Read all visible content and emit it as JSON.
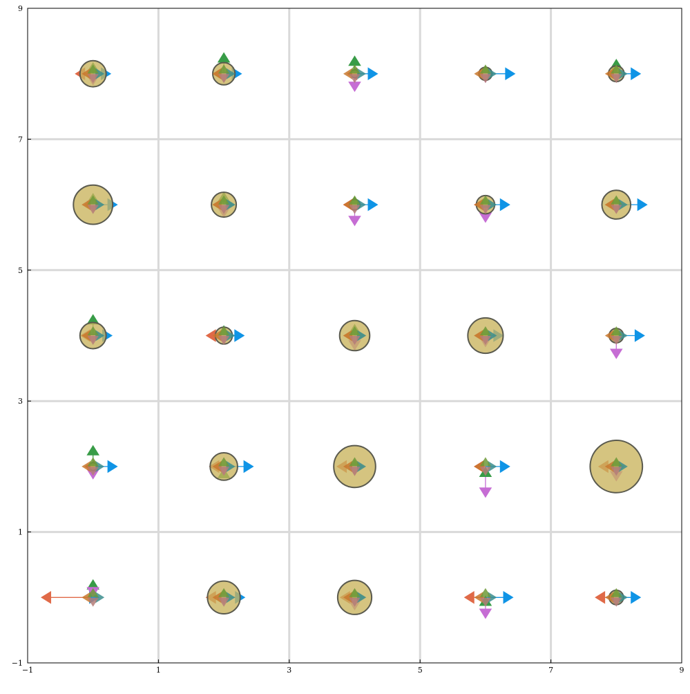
{
  "chart_data": {
    "type": "scatter",
    "title": "",
    "xlabel": "",
    "ylabel": "",
    "xlim": [
      -1,
      9
    ],
    "ylim": [
      -1,
      9
    ],
    "grid": true,
    "legend": "none",
    "xticks": [
      "−1",
      "1",
      "3",
      "5",
      "7",
      "9"
    ],
    "yticks": [
      "−1",
      "1",
      "3",
      "5",
      "7",
      "9"
    ],
    "xtick_values": [
      -1,
      1,
      3,
      5,
      7,
      9
    ],
    "ytick_values": [
      -1,
      1,
      3,
      5,
      7,
      9
    ],
    "colors": {
      "circle_fill": "#c9b45c",
      "circle_stroke": "#5a5a4e",
      "right": "#0f94e6",
      "left": "#e06a48",
      "up": "#389c47",
      "down": "#c66dd4",
      "right_muted": "#3b8d8d",
      "left_muted": "#c8782e",
      "up_muted": "#6f9a38",
      "down_muted": "#b47c78",
      "grid": "#d9d9d9",
      "axis": "#000000"
    },
    "points": [
      {
        "x": 0,
        "y": 8,
        "radius": 0.2,
        "right": 0.2,
        "left": 0.2,
        "up": 0.1,
        "down": 0.1
      },
      {
        "x": 2,
        "y": 8,
        "radius": 0.17,
        "right": 0.2,
        "left": 0.1,
        "up": 0.25,
        "down": 0.05
      },
      {
        "x": 4,
        "y": 8,
        "radius": 0.06,
        "right": 0.28,
        "left": 0.04,
        "up": 0.2,
        "down": 0.2
      },
      {
        "x": 6,
        "y": 8,
        "radius": 0.1,
        "right": 0.38,
        "left": 0.04,
        "up": 0.05,
        "down": 0.06
      },
      {
        "x": 8,
        "y": 8,
        "radius": 0.12,
        "right": 0.3,
        "left": 0.07,
        "up": 0.15,
        "down": 0.05
      },
      {
        "x": 0,
        "y": 6,
        "radius": 0.3,
        "right": 0.3,
        "left": 0.05,
        "up": 0.1,
        "down": 0.02
      },
      {
        "x": 2,
        "y": 6,
        "radius": 0.19,
        "right": 0.1,
        "left": 0.1,
        "up": 0.12,
        "down": 0.12
      },
      {
        "x": 4,
        "y": 6,
        "radius": 0.08,
        "right": 0.28,
        "left": 0.1,
        "up": 0.05,
        "down": 0.25
      },
      {
        "x": 6,
        "y": 6,
        "radius": 0.14,
        "right": 0.3,
        "left": 0.1,
        "up": 0.03,
        "down": 0.2
      },
      {
        "x": 8,
        "y": 6,
        "radius": 0.22,
        "right": 0.4,
        "left": 0.1,
        "up": 0.05,
        "down": 0.06
      },
      {
        "x": 0,
        "y": 4,
        "radius": 0.2,
        "right": 0.22,
        "left": 0.12,
        "up": 0.25,
        "down": 0.03
      },
      {
        "x": 2,
        "y": 4,
        "radius": 0.13,
        "right": 0.24,
        "left": 0.2,
        "up": 0.08,
        "down": 0.05
      },
      {
        "x": 4,
        "y": 4,
        "radius": 0.23,
        "right": 0.1,
        "left": 0.1,
        "up": 0.1,
        "down": 0.15
      },
      {
        "x": 6,
        "y": 4,
        "radius": 0.27,
        "right": 0.2,
        "left": 0.1,
        "up": 0.04,
        "down": 0.1
      },
      {
        "x": 8,
        "y": 4,
        "radius": 0.11,
        "right": 0.36,
        "left": 0.05,
        "up": 0.03,
        "down": 0.28
      },
      {
        "x": 0,
        "y": 2,
        "radius": 0.06,
        "right": 0.3,
        "left": 0.05,
        "up": 0.25,
        "down": 0.12
      },
      {
        "x": 2,
        "y": 2,
        "radius": 0.21,
        "right": 0.38,
        "left": 0.15,
        "up": -0.1,
        "down": 0.06
      },
      {
        "x": 4,
        "y": 2,
        "radius": 0.32,
        "right": 0.06,
        "left": 0.2,
        "up": 0.03,
        "down": 0.07
      },
      {
        "x": 6,
        "y": 2,
        "radius": 0,
        "right": 0.3,
        "left": 0.1,
        "up": -0.08,
        "down": 0.4
      },
      {
        "x": 8,
        "y": 2,
        "radius": 0.4,
        "right": 0.05,
        "left": 0.2,
        "up": 0.04,
        "down": 0.15
      },
      {
        "x": 0,
        "y": 0,
        "radius": 0,
        "right": 0.02,
        "left": 0.72,
        "up": 0.2,
        "down": -0.08
      },
      {
        "x": 2,
        "y": 0,
        "radius": 0.25,
        "right": 0.25,
        "left": 0.2,
        "up": 0.05,
        "down": 0.03
      },
      {
        "x": 4,
        "y": 0,
        "radius": 0.26,
        "right": 0.1,
        "left": 0.15,
        "up": 0.05,
        "down": 0.12
      },
      {
        "x": 6,
        "y": 0,
        "radius": 0,
        "right": 0.35,
        "left": 0.25,
        "up": -0.05,
        "down": 0.25
      },
      {
        "x": 8,
        "y": 0,
        "radius": 0.11,
        "right": 0.3,
        "left": 0.25,
        "up": 0.03,
        "down": 0.05
      }
    ]
  }
}
